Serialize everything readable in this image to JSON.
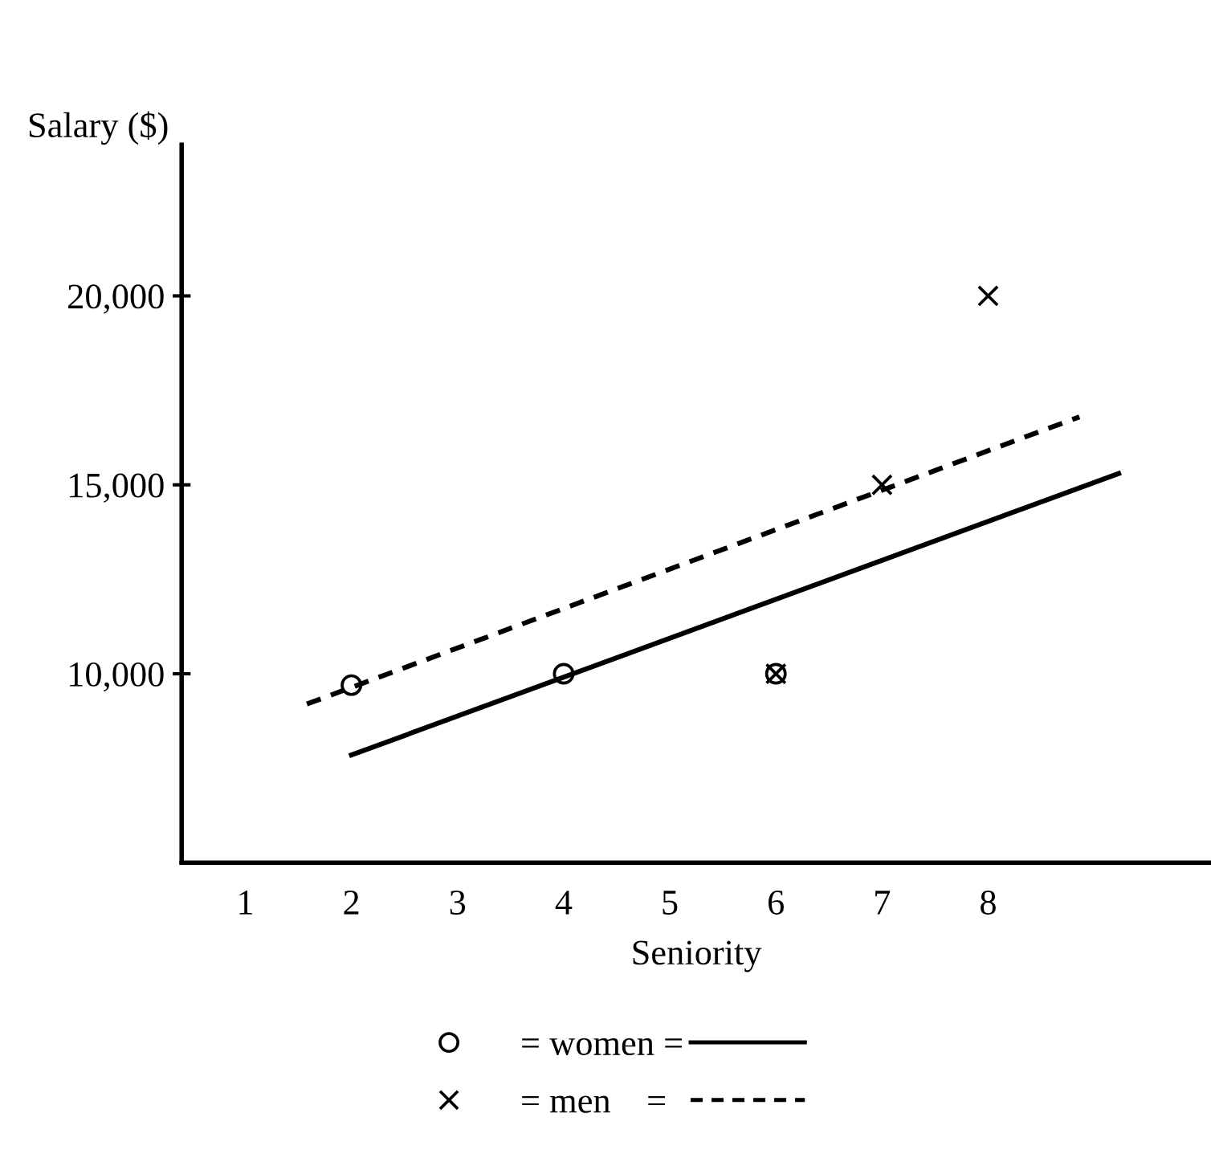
{
  "chart_data": {
    "type": "scatter",
    "xlabel": "Seniority",
    "ylabel": "Salary ($)",
    "xlim": [
      0.4,
      10.1
    ],
    "ylim": [
      5000,
      24000
    ],
    "xticks": [
      1,
      2,
      3,
      4,
      5,
      6,
      7,
      8
    ],
    "yticks": [
      {
        "value": 10000,
        "label": "10,000"
      },
      {
        "value": 15000,
        "label": "15,000"
      },
      {
        "value": 20000,
        "label": "20,000"
      }
    ],
    "grid": false,
    "legend": "bottom",
    "series": [
      {
        "name": "= women =",
        "marker": "circle",
        "color": "#000000",
        "x": [
          2,
          4,
          6
        ],
        "values": [
          9700,
          10000,
          10000
        ]
      },
      {
        "name": "= men    =",
        "marker": "cross",
        "color": "#000000",
        "x": [
          6,
          7,
          8
        ],
        "values": [
          10000,
          15000,
          20000
        ]
      },
      {
        "type": "line",
        "line_style": "solid",
        "color": "#000000",
        "x": [
          2,
          9.23
        ],
        "values": [
          7850,
          15300
        ]
      },
      {
        "type": "line",
        "line_style": "dashed",
        "color": "#000000",
        "x": [
          1.58,
          8.86
        ],
        "values": [
          9200,
          16800
        ]
      }
    ]
  }
}
